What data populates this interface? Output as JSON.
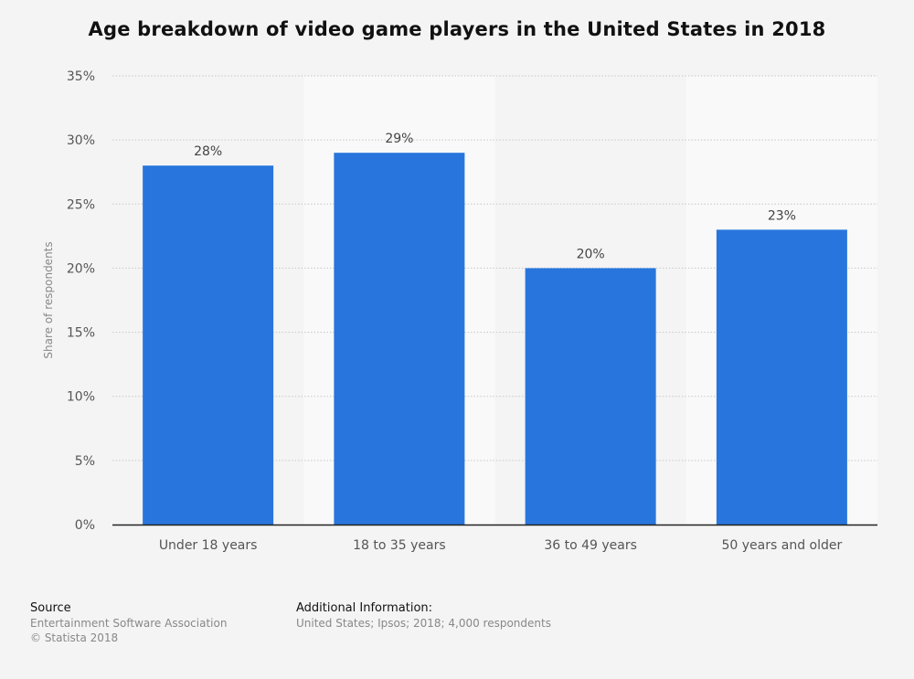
{
  "chart_data": {
    "type": "bar",
    "title": "Age breakdown of video game players in the United States in 2018",
    "xlabel": "",
    "ylabel": "Share of respondents",
    "categories": [
      "Under 18 years",
      "18 to 35 years",
      "36 to 49 years",
      "50 years and older"
    ],
    "values": [
      28,
      29,
      20,
      23
    ],
    "value_labels": [
      "28%",
      "29%",
      "20%",
      "23%"
    ],
    "ylim": [
      0,
      35
    ],
    "yticks": [
      0,
      5,
      10,
      15,
      20,
      25,
      30,
      35
    ],
    "ytick_labels": [
      "0%",
      "5%",
      "10%",
      "15%",
      "20%",
      "25%",
      "30%",
      "35%"
    ],
    "grid": true,
    "bar_color": "#2876dd"
  },
  "footer": {
    "source_heading": "Source",
    "source_lines": [
      "Entertainment Software Association",
      "© Statista 2018"
    ],
    "info_heading": "Additional Information:",
    "info_line": "United States; Ipsos; 2018; 4,000 respondents"
  }
}
